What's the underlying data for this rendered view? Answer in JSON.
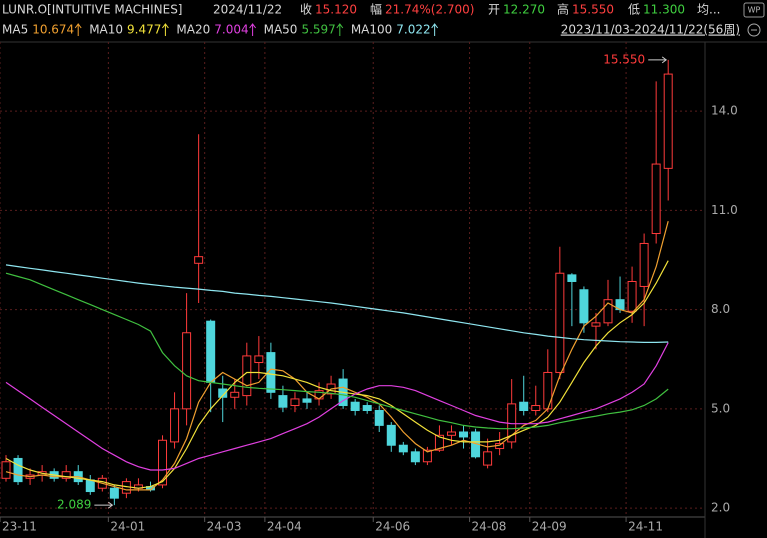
{
  "header": {
    "symbol": "LUNR.O[INTUITIVE MACHINES]",
    "date": "2024/11/22",
    "fields": [
      {
        "label": "收",
        "value": "15.120"
      },
      {
        "label": "幅",
        "value": "21.74%(2.700)"
      },
      {
        "label": "开",
        "value": "12.270"
      },
      {
        "label": "高",
        "value": "15.550"
      },
      {
        "label": "低",
        "value": "11.300"
      },
      {
        "label": "均..."
      }
    ],
    "badge": "WP",
    "range": "2023/11/03-2024/11/22(56周)"
  },
  "chart_data": {
    "type": "candlestick",
    "categories": [
      "23-11",
      null,
      null,
      null,
      null,
      null,
      null,
      null,
      null,
      "24-01",
      null,
      null,
      null,
      null,
      null,
      null,
      null,
      "24-03",
      null,
      null,
      null,
      null,
      "24-04",
      null,
      null,
      null,
      null,
      null,
      null,
      null,
      null,
      "24-06",
      null,
      null,
      null,
      null,
      null,
      null,
      null,
      "24-08",
      null,
      null,
      null,
      null,
      "24-09",
      null,
      null,
      null,
      null,
      null,
      null,
      null,
      "24-11",
      null,
      null,
      null
    ],
    "open": [
      2.9,
      3.5,
      2.9,
      3.0,
      3.1,
      2.9,
      3.1,
      2.85,
      2.6,
      2.6,
      2.45,
      2.6,
      2.65,
      2.7,
      4.0,
      5.0,
      9.4,
      7.65,
      5.6,
      5.35,
      5.4,
      6.4,
      6.7,
      5.4,
      5.1,
      5.3,
      5.3,
      5.45,
      5.9,
      5.2,
      5.1,
      4.95,
      4.5,
      3.9,
      3.7,
      3.4,
      3.75,
      4.2,
      4.3,
      4.3,
      3.3,
      3.8,
      4.0,
      5.2,
      4.95,
      5.0,
      6.1,
      9.05,
      8.6,
      7.5,
      7.6,
      8.3,
      7.95,
      8.7,
      10.3,
      12.27
    ],
    "high": [
      3.6,
      3.6,
      3.2,
      3.3,
      3.2,
      3.3,
      3.3,
      3.0,
      3.0,
      2.7,
      2.9,
      2.9,
      2.8,
      4.2,
      5.5,
      8.5,
      13.3,
      7.7,
      6.0,
      5.9,
      7.0,
      7.2,
      7.0,
      5.7,
      5.5,
      5.5,
      5.8,
      6.0,
      6.2,
      5.3,
      5.2,
      5.1,
      4.6,
      4.0,
      3.8,
      3.85,
      4.5,
      4.5,
      4.5,
      4.4,
      4.1,
      4.3,
      5.9,
      6.0,
      5.7,
      6.8,
      9.9,
      9.1,
      8.7,
      7.9,
      8.9,
      9.0,
      9.3,
      10.3,
      14.9,
      15.55
    ],
    "low": [
      2.8,
      2.7,
      2.7,
      2.8,
      2.8,
      2.8,
      2.7,
      2.4,
      2.5,
      2.089,
      2.3,
      2.5,
      2.5,
      2.6,
      3.8,
      4.5,
      8.2,
      4.9,
      4.6,
      5.0,
      5.1,
      5.9,
      5.3,
      4.9,
      4.9,
      5.0,
      5.1,
      5.3,
      5.0,
      4.8,
      4.85,
      4.3,
      3.7,
      3.6,
      3.3,
      3.3,
      3.7,
      3.9,
      3.8,
      3.5,
      3.2,
      3.6,
      3.8,
      4.8,
      4.8,
      4.9,
      5.9,
      7.5,
      7.3,
      6.8,
      7.5,
      7.9,
      7.6,
      7.5,
      10.0,
      11.3
    ],
    "close": [
      3.4,
      2.8,
      3.0,
      3.1,
      2.9,
      3.1,
      2.8,
      2.5,
      2.9,
      2.3,
      2.8,
      2.7,
      2.55,
      4.05,
      5.0,
      7.3,
      9.6,
      5.8,
      5.35,
      5.5,
      6.6,
      6.6,
      5.5,
      5.05,
      5.3,
      5.2,
      5.55,
      5.75,
      5.1,
      4.95,
      4.95,
      4.5,
      3.9,
      3.7,
      3.4,
      3.75,
      4.2,
      4.3,
      4.15,
      3.55,
      3.7,
      3.95,
      5.15,
      4.95,
      5.1,
      6.1,
      9.1,
      8.85,
      7.6,
      7.6,
      8.3,
      8.0,
      8.85,
      10.0,
      12.4,
      15.12
    ],
    "up_color": "#ff3b3b",
    "down_color": "#4fd6dc",
    "lines": [
      {
        "name": "MA5",
        "color": "#f0a030",
        "values": [
          3.1,
          3.0,
          2.95,
          3.0,
          2.95,
          2.95,
          2.95,
          2.85,
          2.75,
          2.65,
          2.55,
          2.55,
          2.55,
          2.85,
          3.35,
          4.1,
          5.2,
          5.8,
          6.1,
          5.9,
          5.7,
          5.8,
          6.2,
          6.15,
          5.9,
          5.5,
          5.3,
          5.6,
          5.65,
          5.5,
          5.35,
          5.15,
          4.75,
          4.3,
          3.95,
          3.7,
          3.8,
          3.9,
          4.05,
          3.95,
          3.85,
          3.9,
          4.2,
          4.5,
          4.65,
          5.0,
          6.0,
          6.8,
          7.5,
          7.8,
          8.2,
          8.0,
          7.9,
          8.3,
          9.3,
          10.674
        ]
      },
      {
        "name": "MA10",
        "color": "#f2e23a",
        "values": [
          3.5,
          3.3,
          3.15,
          3.05,
          3.0,
          2.95,
          2.9,
          2.85,
          2.8,
          2.7,
          2.65,
          2.6,
          2.65,
          2.8,
          3.2,
          3.8,
          4.5,
          5.0,
          5.4,
          5.8,
          6.1,
          6.1,
          6.05,
          6.0,
          5.9,
          5.8,
          5.65,
          5.55,
          5.5,
          5.45,
          5.4,
          5.3,
          5.1,
          4.85,
          4.6,
          4.35,
          4.15,
          4.05,
          4.0,
          4.0,
          4.0,
          4.05,
          4.2,
          4.35,
          4.5,
          4.75,
          5.2,
          5.8,
          6.4,
          6.9,
          7.3,
          7.6,
          7.85,
          8.2,
          8.8,
          9.477
        ]
      },
      {
        "name": "MA20",
        "color": "#e040e0",
        "values": [
          5.8,
          5.55,
          5.3,
          5.05,
          4.8,
          4.55,
          4.3,
          4.05,
          3.8,
          3.6,
          3.4,
          3.25,
          3.15,
          3.15,
          3.2,
          3.35,
          3.5,
          3.6,
          3.7,
          3.8,
          3.9,
          4.0,
          4.1,
          4.25,
          4.4,
          4.55,
          4.75,
          5.0,
          5.25,
          5.45,
          5.6,
          5.7,
          5.7,
          5.65,
          5.55,
          5.4,
          5.25,
          5.1,
          4.95,
          4.8,
          4.7,
          4.6,
          4.55,
          4.55,
          4.55,
          4.6,
          4.7,
          4.8,
          4.9,
          5.0,
          5.15,
          5.3,
          5.5,
          5.75,
          6.3,
          7.004
        ]
      },
      {
        "name": "MA50",
        "color": "#40c040",
        "values": [
          9.1,
          9.0,
          8.9,
          8.75,
          8.6,
          8.45,
          8.3,
          8.15,
          8.0,
          7.85,
          7.7,
          7.55,
          7.35,
          6.7,
          6.3,
          6.0,
          5.85,
          5.8,
          5.75,
          5.7,
          5.65,
          5.62,
          5.6,
          5.58,
          5.55,
          5.52,
          5.5,
          5.47,
          5.42,
          5.35,
          5.25,
          5.15,
          5.05,
          4.95,
          4.85,
          4.75,
          4.65,
          4.58,
          4.5,
          4.45,
          4.42,
          4.4,
          4.4,
          4.42,
          4.45,
          4.5,
          4.58,
          4.65,
          4.72,
          4.78,
          4.85,
          4.9,
          4.97,
          5.1,
          5.3,
          5.597
        ]
      },
      {
        "name": "MA100",
        "color": "#8fe6f0",
        "values": [
          9.35,
          9.3,
          9.25,
          9.2,
          9.15,
          9.1,
          9.05,
          9.0,
          8.95,
          8.9,
          8.85,
          8.8,
          8.76,
          8.72,
          8.68,
          8.65,
          8.62,
          8.58,
          8.55,
          8.5,
          8.47,
          8.43,
          8.4,
          8.36,
          8.32,
          8.28,
          8.24,
          8.2,
          8.15,
          8.1,
          8.05,
          8.0,
          7.95,
          7.9,
          7.84,
          7.78,
          7.72,
          7.66,
          7.6,
          7.54,
          7.48,
          7.42,
          7.36,
          7.3,
          7.25,
          7.2,
          7.16,
          7.12,
          7.09,
          7.07,
          7.05,
          7.03,
          7.02,
          7.01,
          7.01,
          7.022
        ]
      }
    ],
    "annotations": [
      {
        "label": "15.550",
        "value": 15.55
      },
      {
        "label": "2.089",
        "value": 2.089
      }
    ],
    "ylim": [
      1.7,
      16.09
    ],
    "yticks": [
      {
        "value": 2,
        "label": "2.0"
      },
      {
        "value": 5,
        "label": "5.0"
      },
      {
        "value": 8,
        "label": "8.0"
      },
      {
        "value": 11,
        "label": "11.0"
      },
      {
        "value": 14,
        "label": "14.0"
      }
    ],
    "grid": true
  }
}
